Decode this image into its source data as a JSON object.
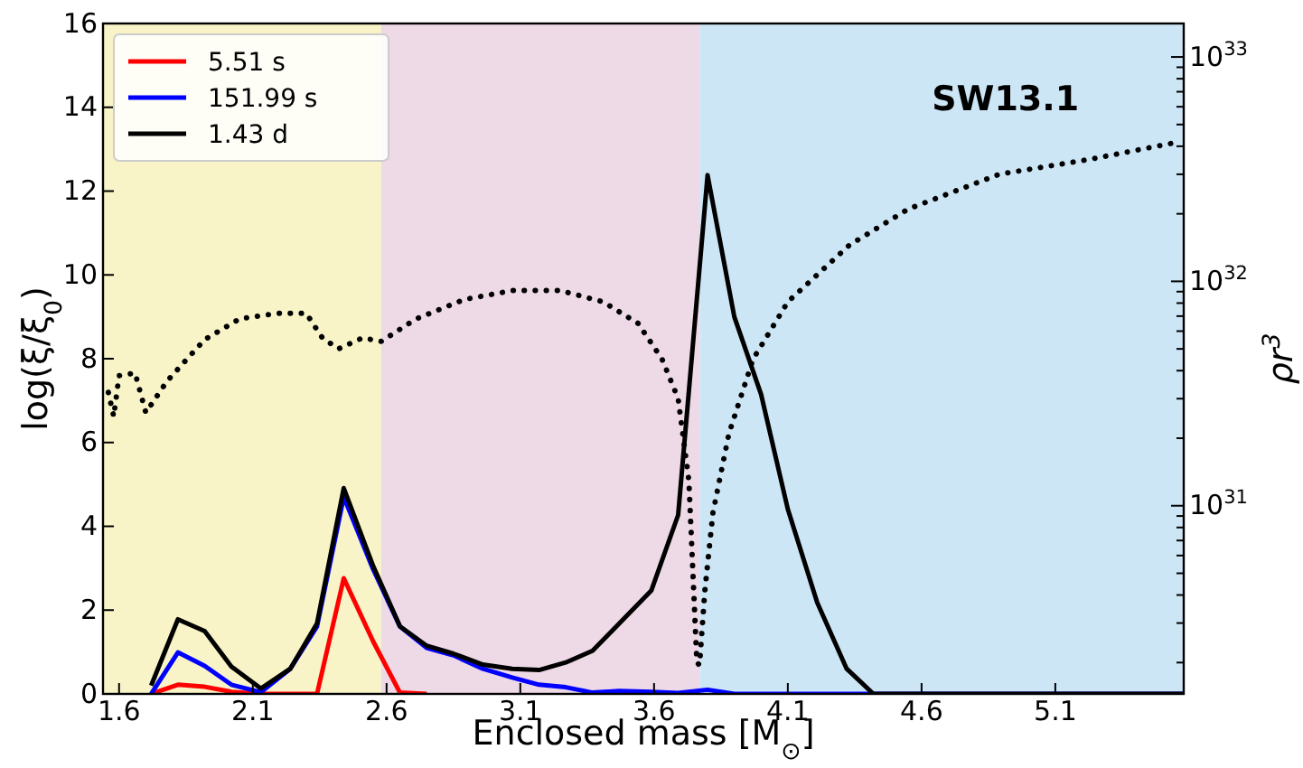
{
  "chart_data": {
    "type": "line",
    "xlabel": "Enclosed mass [M$_{⊙}$]",
    "ylabel": "log(ξ/ξ$_{0}$)",
    "y2label": "ρr$^{3}$",
    "annotations": [
      "SW13.1"
    ],
    "xlim": [
      1.54,
      5.58
    ],
    "xticks": [
      1.6,
      2.1,
      2.6,
      3.1,
      3.6,
      4.1,
      4.6,
      5.1
    ],
    "ylim": [
      0,
      16
    ],
    "yticks": [
      0,
      2,
      4,
      6,
      8,
      10,
      12,
      14,
      16
    ],
    "y2lim": [
      1.45e+30,
      1.41e+33
    ],
    "log": "y2",
    "y2ticks": [
      {
        "value": 2e+30,
        "label": null
      },
      {
        "value": 3e+30,
        "label": null
      },
      {
        "value": 4e+30,
        "label": null
      },
      {
        "value": 5e+30,
        "label": null
      },
      {
        "value": 6e+30,
        "label": null
      },
      {
        "value": 7e+30,
        "label": null
      },
      {
        "value": 8e+30,
        "label": null
      },
      {
        "value": 9e+30,
        "label": null
      },
      {
        "value": 1e+31,
        "label": "10$^{31}$"
      },
      {
        "value": 2e+31,
        "label": null
      },
      {
        "value": 3e+31,
        "label": null
      },
      {
        "value": 4e+31,
        "label": null
      },
      {
        "value": 5e+31,
        "label": null
      },
      {
        "value": 6e+31,
        "label": null
      },
      {
        "value": 7e+31,
        "label": null
      },
      {
        "value": 8e+31,
        "label": null
      },
      {
        "value": 9e+31,
        "label": null
      },
      {
        "value": 1e+32,
        "label": "10$^{32}$"
      },
      {
        "value": 2e+32,
        "label": null
      },
      {
        "value": 3e+32,
        "label": null
      },
      {
        "value": 4e+32,
        "label": null
      },
      {
        "value": 5e+32,
        "label": null
      },
      {
        "value": 6e+32,
        "label": null
      },
      {
        "value": 7e+32,
        "label": null
      },
      {
        "value": 8e+32,
        "label": null
      },
      {
        "value": 9e+32,
        "label": null
      },
      {
        "value": 1e+33,
        "label": "10$^{33}$"
      }
    ],
    "bands": [
      {
        "axis": "x",
        "from": 1.54,
        "to": 2.58,
        "color": "#f8f4c8"
      },
      {
        "axis": "x",
        "from": 2.58,
        "to": 3.77,
        "color": "#eed9e6"
      },
      {
        "axis": "x",
        "from": 3.77,
        "to": 5.58,
        "color": "#cde6f6"
      }
    ],
    "grid": false,
    "legend": "top left",
    "marker": "none",
    "series": [
      {
        "name": "5.51 s",
        "color": "#ff0000",
        "line_style": "solid",
        "x": [
          1.72,
          1.82,
          1.92,
          2.02,
          2.13,
          2.24,
          2.34,
          2.44,
          2.55,
          2.65,
          2.75
        ],
        "values": [
          0,
          0.22,
          0.17,
          0.05,
          0,
          0,
          0,
          2.76,
          1.25,
          0.03,
          0
        ]
      },
      {
        "name": "151.99 s",
        "color": "#0000ff",
        "line_style": "solid",
        "x": [
          1.72,
          1.82,
          1.92,
          2.02,
          2.13,
          2.24,
          2.34,
          2.44,
          2.55,
          2.65,
          2.75,
          2.85,
          2.96,
          3.07,
          3.17,
          3.27,
          3.37,
          3.47,
          3.59,
          3.69,
          3.8,
          3.9,
          4.5,
          5.58
        ],
        "values": [
          0,
          0.99,
          0.67,
          0.22,
          0.04,
          0.6,
          1.61,
          4.7,
          2.97,
          1.61,
          1.1,
          0.92,
          0.6,
          0.39,
          0.22,
          0.16,
          0.03,
          0.07,
          0.05,
          0.02,
          0.1,
          0,
          0,
          0
        ]
      },
      {
        "name": "1.43 d",
        "color": "#000000",
        "line_style": "solid",
        "x": [
          1.72,
          1.82,
          1.92,
          2.02,
          2.13,
          2.24,
          2.34,
          2.44,
          2.55,
          2.65,
          2.75,
          2.85,
          2.96,
          3.07,
          3.17,
          3.27,
          3.37,
          3.47,
          3.59,
          3.69,
          3.8,
          3.9,
          4.0,
          4.1,
          4.21,
          4.32,
          4.42,
          5.58
        ],
        "values": [
          0.2,
          1.78,
          1.5,
          0.65,
          0.13,
          0.6,
          1.68,
          4.91,
          3.05,
          1.61,
          1.15,
          0.96,
          0.7,
          0.6,
          0.57,
          0.75,
          1.03,
          1.68,
          2.47,
          4.27,
          12.38,
          9.0,
          7.15,
          4.41,
          2.18,
          0.6,
          0,
          0
        ]
      },
      {
        "color": "#000000",
        "line_style": "dotted",
        "axis": "y2",
        "x": [
          1.56,
          1.58,
          1.6,
          1.66,
          1.7,
          1.78,
          1.92,
          2.05,
          2.19,
          2.3,
          2.36,
          2.42,
          2.51,
          2.58,
          2.71,
          2.89,
          3.07,
          3.25,
          3.41,
          3.54,
          3.63,
          3.69,
          3.73,
          3.76,
          3.77,
          3.79,
          3.82,
          3.88,
          3.97,
          4.1,
          4.33,
          4.55,
          4.89,
          5.23,
          5.57
        ],
        "values": [
          3.2e+31,
          2.5e+31,
          3.8e+31,
          3.9e+31,
          2.6e+31,
          3.6e+31,
          5.5e+31,
          6.8e+31,
          7.2e+31,
          7.2e+31,
          5.6e+31,
          5e+31,
          5.6e+31,
          5.4e+31,
          6.8e+31,
          8.3e+31,
          9.1e+31,
          9.1e+31,
          8.1e+31,
          6.5e+31,
          4.5e+31,
          3e+31,
          1.3e+31,
          2e+30,
          1.95e+30,
          4.2e+30,
          9.3e+30,
          2.1e+31,
          4.5e+31,
          8.1e+31,
          1.45e+32,
          2.1e+32,
          3e+32,
          3.5e+32,
          4.2e+32
        ]
      }
    ]
  }
}
